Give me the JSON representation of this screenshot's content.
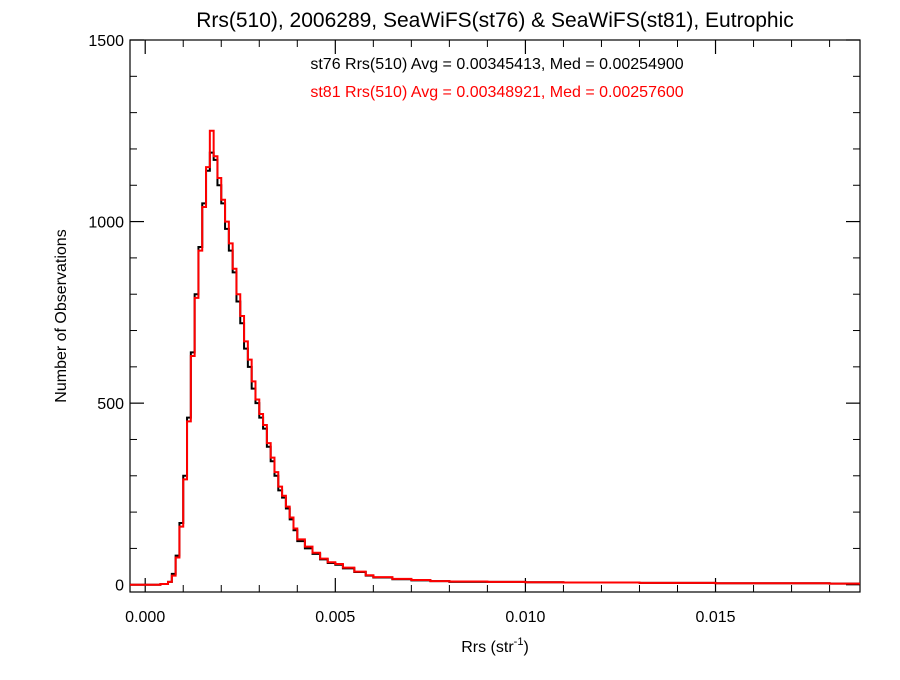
{
  "chart_data": {
    "type": "line",
    "title": "Rrs(510), 2006289, SeaWiFS(st76) & SeaWiFS(st81), Eutrophic",
    "xlabel_main": "Rrs (str",
    "xlabel_sup": "-1",
    "xlabel_close": ")",
    "ylabel": "Number of Observations",
    "xlim": [
      -0.0004,
      0.0188
    ],
    "ylim": [
      -20,
      1500
    ],
    "x_ticks": [
      "0.000",
      "0.005",
      "0.010",
      "0.015"
    ],
    "x_tick_values": [
      0.0,
      0.005,
      0.01,
      0.015
    ],
    "y_ticks": [
      "0",
      "500",
      "1000",
      "1500"
    ],
    "y_tick_values": [
      0,
      500,
      1000,
      1500
    ],
    "grid": false,
    "annotations": [
      {
        "text": "st76 Rrs(510) Avg = 0.00345413, Med = 0.00254900",
        "color": "#000000"
      },
      {
        "text": "st81 Rrs(510) Avg = 0.00348921, Med = 0.00257600",
        "color": "#ff0000"
      }
    ],
    "series": [
      {
        "color": "#000000",
        "x": [
          -0.0004,
          0.0,
          0.0004,
          0.0006,
          0.0007,
          0.0008,
          0.0009,
          0.001,
          0.0011,
          0.0012,
          0.0013,
          0.0014,
          0.0015,
          0.0016,
          0.0017,
          0.0018,
          0.0019,
          0.002,
          0.0021,
          0.0022,
          0.0023,
          0.0024,
          0.0025,
          0.0026,
          0.0027,
          0.0028,
          0.0029,
          0.003,
          0.0031,
          0.0032,
          0.0033,
          0.0034,
          0.0035,
          0.0036,
          0.0037,
          0.0038,
          0.0039,
          0.004,
          0.0042,
          0.0044,
          0.0046,
          0.0048,
          0.005,
          0.0052,
          0.0055,
          0.0058,
          0.006,
          0.0065,
          0.007,
          0.0075,
          0.008,
          0.009,
          0.01,
          0.011,
          0.012,
          0.013,
          0.014,
          0.015,
          0.016,
          0.017,
          0.018,
          0.0188
        ],
        "y": [
          0,
          0,
          2,
          8,
          30,
          80,
          170,
          300,
          460,
          640,
          800,
          930,
          1050,
          1140,
          1190,
          1170,
          1100,
          1050,
          980,
          920,
          860,
          780,
          720,
          650,
          600,
          540,
          500,
          460,
          430,
          380,
          340,
          300,
          260,
          240,
          210,
          180,
          150,
          120,
          100,
          85,
          70,
          60,
          55,
          45,
          35,
          25,
          20,
          15,
          12,
          10,
          8,
          8,
          7,
          6,
          6,
          5,
          5,
          4,
          4,
          4,
          3,
          3
        ]
      },
      {
        "color": "#ff0000",
        "x": [
          -0.0004,
          0.0,
          0.0004,
          0.0006,
          0.0007,
          0.0008,
          0.0009,
          0.001,
          0.0011,
          0.0012,
          0.0013,
          0.0014,
          0.0015,
          0.0016,
          0.0017,
          0.0018,
          0.0019,
          0.002,
          0.0021,
          0.0022,
          0.0023,
          0.0024,
          0.0025,
          0.0026,
          0.0027,
          0.0028,
          0.0029,
          0.003,
          0.0031,
          0.0032,
          0.0033,
          0.0034,
          0.0035,
          0.0036,
          0.0037,
          0.0038,
          0.0039,
          0.004,
          0.0042,
          0.0044,
          0.0046,
          0.0048,
          0.005,
          0.0052,
          0.0055,
          0.0058,
          0.006,
          0.0065,
          0.007,
          0.0075,
          0.008,
          0.009,
          0.01,
          0.011,
          0.012,
          0.013,
          0.014,
          0.015,
          0.016,
          0.017,
          0.018,
          0.0188
        ],
        "y": [
          0,
          0,
          2,
          8,
          25,
          75,
          160,
          290,
          450,
          630,
          790,
          920,
          1040,
          1150,
          1250,
          1180,
          1120,
          1060,
          1000,
          940,
          870,
          800,
          740,
          670,
          620,
          560,
          510,
          470,
          440,
          390,
          350,
          310,
          270,
          245,
          215,
          185,
          155,
          125,
          105,
          88,
          72,
          62,
          57,
          47,
          36,
          26,
          21,
          16,
          13,
          10,
          9,
          8,
          7,
          6,
          6,
          5,
          5,
          4,
          4,
          4,
          3,
          3
        ]
      }
    ]
  }
}
